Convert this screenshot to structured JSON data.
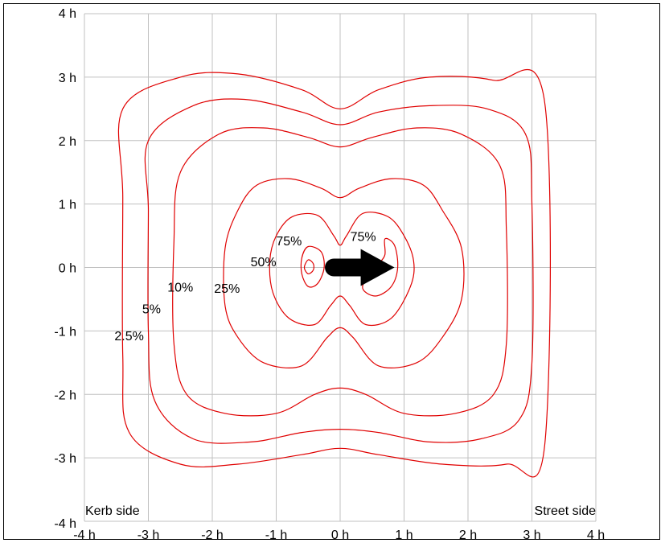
{
  "chart_data": {
    "type": "contour",
    "title": "",
    "xlabel": "",
    "ylabel": "",
    "xlim": [
      -4,
      4
    ],
    "ylim": [
      -4,
      4
    ],
    "unit": "h",
    "x_ticks": [
      "-4 h",
      "-3 h",
      "-2 h",
      "-1 h",
      "0 h",
      "1 h",
      "2 h",
      "3 h",
      "4 h"
    ],
    "y_ticks": [
      "4 h",
      "3 h",
      "2 h",
      "1 h",
      "0 h",
      "-1 h",
      "-2 h",
      "-3 h",
      "-4 h"
    ],
    "x_tick_values": [
      -4,
      -3,
      -2,
      -1,
      0,
      1,
      2,
      3,
      4
    ],
    "y_tick_values": [
      4,
      3,
      2,
      1,
      0,
      -1,
      -2,
      -3,
      -4
    ],
    "grid": true,
    "line_color": "#e00000",
    "arrow_color": "#000000",
    "annotations": {
      "left": "Kerb side",
      "right": "Street side"
    },
    "contours": [
      {
        "label": "2.5%",
        "label_at": [
          -3.3,
          -1.15
        ],
        "points": [
          [
            -3.4,
            2.5
          ],
          [
            -2.5,
            3.0
          ],
          [
            -1.6,
            3.05
          ],
          [
            -0.6,
            2.8
          ],
          [
            0,
            2.5
          ],
          [
            0.6,
            2.8
          ],
          [
            1.4,
            3.0
          ],
          [
            2.4,
            2.95
          ],
          [
            3.2,
            2.6
          ],
          [
            3.2,
            -2.8
          ],
          [
            2.6,
            -3.1
          ],
          [
            1.6,
            -3.1
          ],
          [
            0.6,
            -2.95
          ],
          [
            0,
            -2.85
          ],
          [
            -0.6,
            -2.95
          ],
          [
            -1.6,
            -3.1
          ],
          [
            -2.5,
            -3.1
          ],
          [
            -3.3,
            -2.6
          ],
          [
            -3.4,
            -1.4
          ],
          [
            -3.4,
            1.1
          ]
        ]
      },
      {
        "label": "5%",
        "label_at": [
          -2.95,
          -0.72
        ],
        "points": [
          [
            -3.0,
            2.0
          ],
          [
            -2.3,
            2.55
          ],
          [
            -1.5,
            2.65
          ],
          [
            -0.6,
            2.45
          ],
          [
            0,
            2.25
          ],
          [
            0.6,
            2.45
          ],
          [
            1.4,
            2.55
          ],
          [
            2.3,
            2.5
          ],
          [
            2.9,
            2.1
          ],
          [
            3.0,
            1.0
          ],
          [
            3.0,
            -1.5
          ],
          [
            2.8,
            -2.4
          ],
          [
            2.2,
            -2.7
          ],
          [
            1.4,
            -2.75
          ],
          [
            0.6,
            -2.6
          ],
          [
            0,
            -2.55
          ],
          [
            -0.6,
            -2.6
          ],
          [
            -1.4,
            -2.75
          ],
          [
            -2.3,
            -2.7
          ],
          [
            -2.9,
            -2.1
          ],
          [
            -3.0,
            -1.0
          ],
          [
            -3.0,
            0.9
          ]
        ]
      },
      {
        "label": "10%",
        "label_at": [
          -2.5,
          -0.38
        ],
        "points": [
          [
            -2.5,
            1.5
          ],
          [
            -1.9,
            2.1
          ],
          [
            -1.2,
            2.2
          ],
          [
            -0.5,
            2.05
          ],
          [
            0,
            1.9
          ],
          [
            0.5,
            2.05
          ],
          [
            1.2,
            2.2
          ],
          [
            1.9,
            2.1
          ],
          [
            2.5,
            1.6
          ],
          [
            2.6,
            0.6
          ],
          [
            2.6,
            -1.2
          ],
          [
            2.4,
            -2.0
          ],
          [
            1.8,
            -2.3
          ],
          [
            1.0,
            -2.3
          ],
          [
            0.4,
            -2.0
          ],
          [
            0,
            -1.9
          ],
          [
            -0.4,
            -2.0
          ],
          [
            -1.0,
            -2.3
          ],
          [
            -1.8,
            -2.3
          ],
          [
            -2.4,
            -2.0
          ],
          [
            -2.6,
            -1.2
          ],
          [
            -2.6,
            0.4
          ]
        ]
      },
      {
        "label": "25%",
        "label_at": [
          -1.77,
          -0.4
        ],
        "points": [
          [
            -1.6,
            0.9
          ],
          [
            -1.3,
            1.3
          ],
          [
            -0.8,
            1.4
          ],
          [
            -0.3,
            1.25
          ],
          [
            0,
            1.1
          ],
          [
            0.3,
            1.25
          ],
          [
            0.8,
            1.4
          ],
          [
            1.3,
            1.3
          ],
          [
            1.6,
            0.9
          ],
          [
            1.9,
            0.3
          ],
          [
            1.9,
            -0.5
          ],
          [
            1.6,
            -1.1
          ],
          [
            1.2,
            -1.5
          ],
          [
            0.6,
            -1.55
          ],
          [
            0.2,
            -1.1
          ],
          [
            0,
            -0.95
          ],
          [
            -0.2,
            -1.1
          ],
          [
            -0.6,
            -1.55
          ],
          [
            -1.2,
            -1.5
          ],
          [
            -1.6,
            -1.1
          ],
          [
            -1.8,
            -0.6
          ],
          [
            -1.8,
            0.3
          ]
        ]
      },
      {
        "label": "50%",
        "label_at": [
          -1.2,
          0.02
        ],
        "points": [
          [
            -1.0,
            0.5
          ],
          [
            -0.75,
            0.8
          ],
          [
            -0.35,
            0.82
          ],
          [
            -0.1,
            0.5
          ],
          [
            0,
            0.35
          ],
          [
            0.1,
            0.5
          ],
          [
            0.35,
            0.85
          ],
          [
            0.75,
            0.8
          ],
          [
            1.0,
            0.5
          ],
          [
            1.15,
            0.1
          ],
          [
            1.1,
            -0.3
          ],
          [
            0.8,
            -0.8
          ],
          [
            0.4,
            -0.9
          ],
          [
            0.15,
            -0.6
          ],
          [
            0,
            -0.45
          ],
          [
            -0.15,
            -0.6
          ],
          [
            -0.4,
            -0.9
          ],
          [
            -0.8,
            -0.8
          ],
          [
            -1.05,
            -0.4
          ],
          [
            -1.1,
            0.1
          ]
        ]
      },
      {
        "label": "75%",
        "label_at": [
          -0.8,
          0.35
        ],
        "points": [
          [
            -0.5,
            0.33
          ],
          [
            -0.3,
            0.25
          ],
          [
            -0.25,
            0.0
          ],
          [
            -0.35,
            -0.25
          ],
          [
            -0.5,
            -0.3
          ],
          [
            -0.6,
            -0.1
          ],
          [
            -0.6,
            0.15
          ]
        ]
      },
      {
        "label": "75%",
        "label_at": [
          0.36,
          0.42
        ],
        "points": [
          [
            0.35,
            -0.3
          ],
          [
            0.55,
            -0.45
          ],
          [
            0.8,
            -0.3
          ],
          [
            0.9,
            0.0
          ],
          [
            0.85,
            0.35
          ],
          [
            0.7,
            0.45
          ],
          [
            0.7,
            0.2
          ],
          [
            0.6,
            0.05
          ]
        ]
      }
    ],
    "inner_peak": {
      "points": [
        [
          -0.5,
          0.12
        ],
        [
          -0.42,
          0.06
        ],
        [
          -0.42,
          -0.04
        ],
        [
          -0.5,
          -0.1
        ],
        [
          -0.56,
          0.0
        ]
      ]
    },
    "arrow": {
      "from": [
        -0.1,
        0.0
      ],
      "to": [
        0.85,
        0.0
      ]
    }
  }
}
